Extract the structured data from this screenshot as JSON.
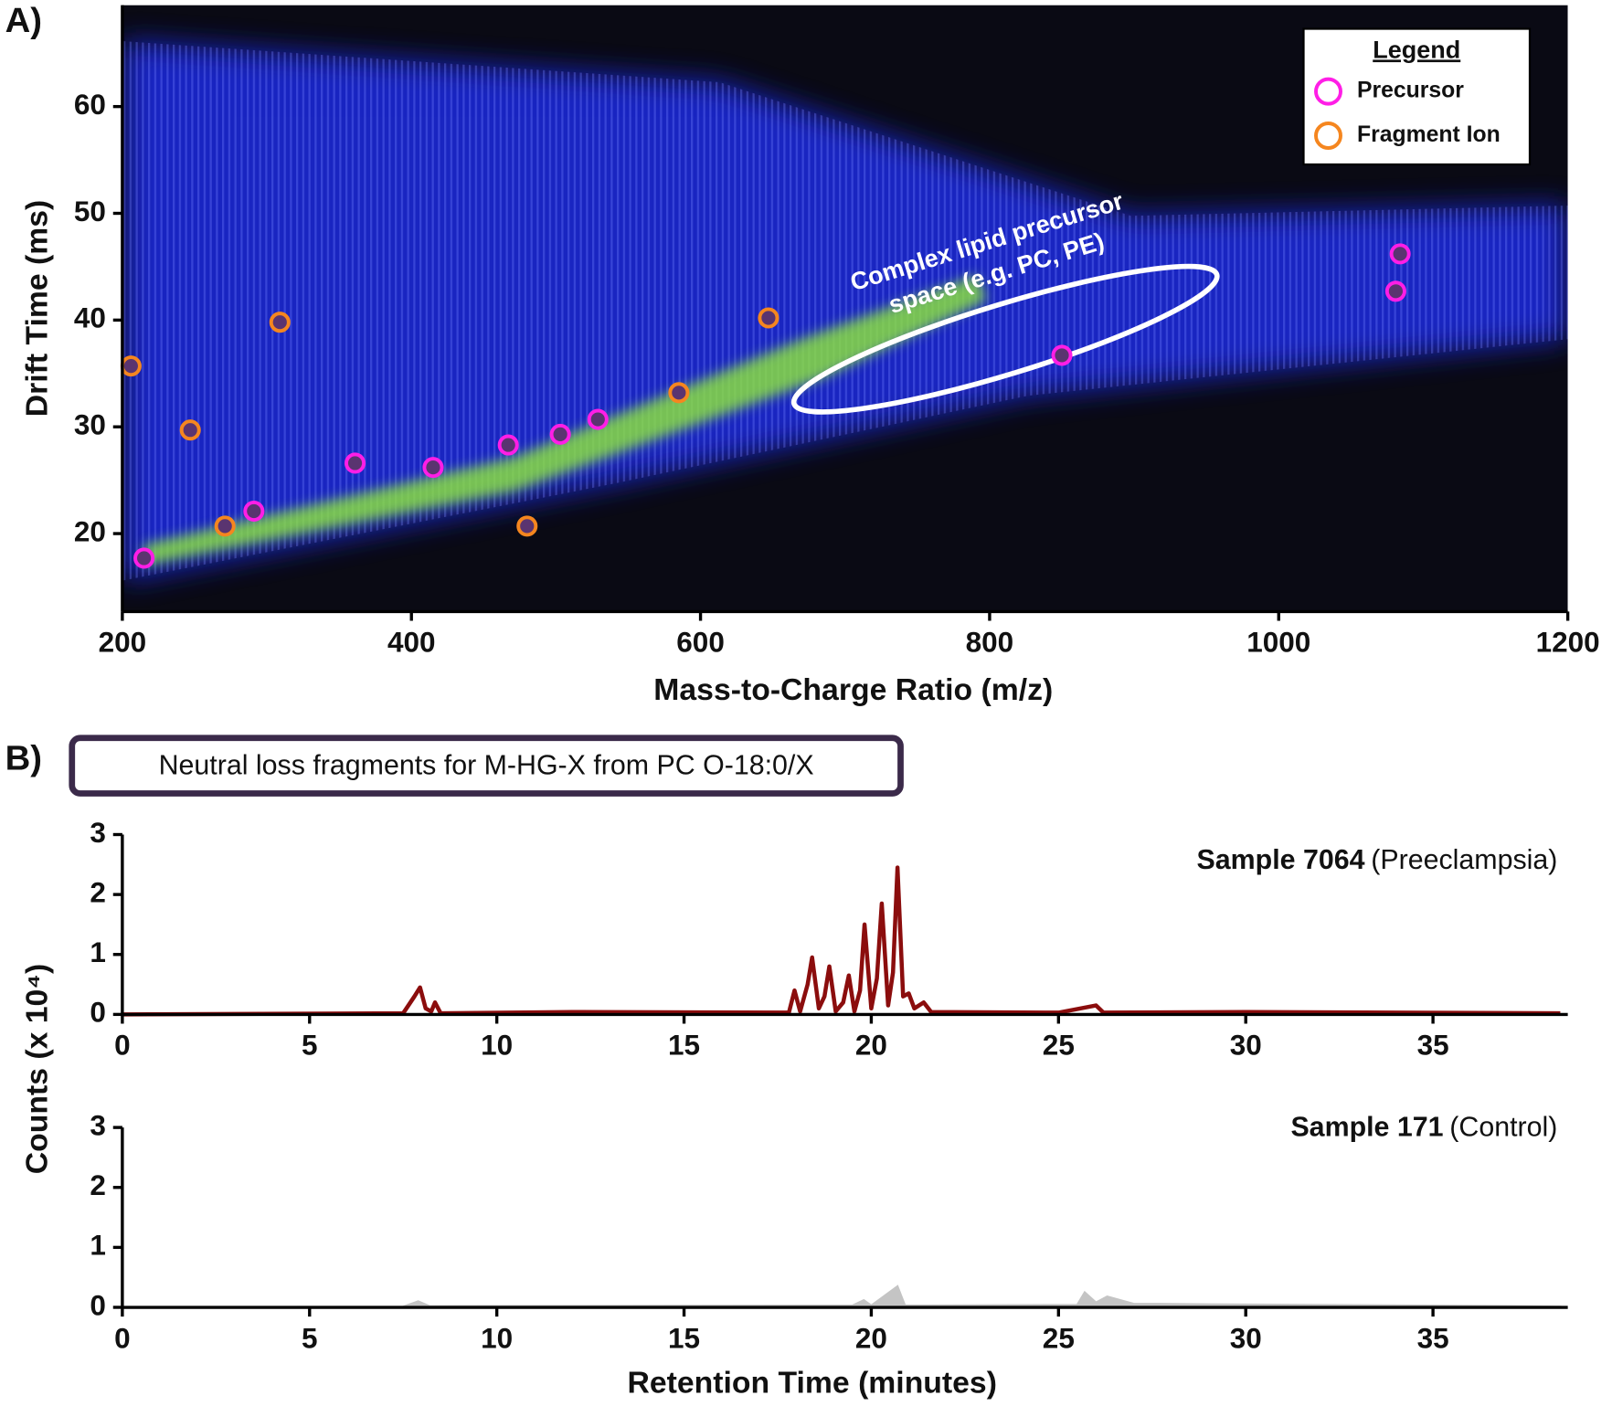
{
  "chart_data": [
    {
      "type": "scatter",
      "panel": "A)",
      "xlabel": "Mass-to-Charge Ratio (m/z)",
      "ylabel": "Drift Time (ms)",
      "xlim": [
        200,
        1200
      ],
      "ylim": [
        12.7,
        69.5
      ],
      "xticks": [
        200,
        400,
        600,
        800,
        1000,
        1200
      ],
      "yticks": [
        20,
        30,
        40,
        50,
        60
      ],
      "legend_title": "Legend",
      "legend": "upper right",
      "annotation": [
        "Complex lipid precursor",
        "space (e.g. PC, PE)"
      ],
      "series": [
        {
          "name": "Precursor",
          "color": "#ff1ee6",
          "x": [
            215,
            291,
            361,
            415,
            467,
            503,
            529,
            850,
            1081,
            1084
          ],
          "values": [
            17.7,
            22.1,
            26.6,
            26.2,
            28.3,
            29.3,
            30.7,
            36.7,
            42.7,
            46.2
          ]
        },
        {
          "name": "Fragment Ion",
          "color": "#f5861f",
          "x": [
            206,
            247,
            271,
            309,
            480,
            585,
            647
          ],
          "values": [
            35.7,
            29.7,
            20.7,
            39.8,
            20.7,
            33.2,
            40.2
          ]
        }
      ]
    },
    {
      "type": "line",
      "panel": "B)",
      "title": "Neutral loss fragments for M-HG-X from PC O-18:0/X",
      "ylabel": "Counts (x 10⁴)",
      "sample": "Sample 7064",
      "group": "(Preeclampsia)",
      "color": "#8b0d0d",
      "xlim": [
        0,
        38.6
      ],
      "ylim": [
        0,
        3
      ],
      "xticks": [
        0,
        5,
        10,
        15,
        20,
        25,
        30,
        35
      ],
      "yticks": [
        0,
        1,
        2,
        3
      ],
      "x": [
        0,
        7.5,
        7.8,
        7.95,
        8.1,
        8.25,
        8.35,
        8.5,
        12,
        17.8,
        17.95,
        18.1,
        18.3,
        18.42,
        18.6,
        18.75,
        18.88,
        19.05,
        19.25,
        19.4,
        19.55,
        19.7,
        19.82,
        20.0,
        20.15,
        20.28,
        20.45,
        20.58,
        20.7,
        20.85,
        21.0,
        21.15,
        21.4,
        21.6,
        25,
        26.0,
        26.2,
        30,
        38.4
      ],
      "values": [
        0,
        0.02,
        0.3,
        0.45,
        0.1,
        0.05,
        0.2,
        0.02,
        0.04,
        0.03,
        0.4,
        0.05,
        0.5,
        0.95,
        0.1,
        0.3,
        0.8,
        0.05,
        0.2,
        0.65,
        0.05,
        0.4,
        1.5,
        0.1,
        0.6,
        1.85,
        0.15,
        0.7,
        2.45,
        0.3,
        0.35,
        0.1,
        0.2,
        0.04,
        0.03,
        0.15,
        0.03,
        0.04,
        0.02
      ]
    },
    {
      "type": "area",
      "sample": "Sample 171",
      "group": "(Control)",
      "xlabel": "Retention Time (minutes)",
      "color": "#c4c4c4",
      "xlim": [
        0,
        38.6
      ],
      "ylim": [
        0,
        3
      ],
      "xticks": [
        0,
        5,
        10,
        15,
        20,
        25,
        30,
        35
      ],
      "yticks": [
        0,
        1,
        2,
        3
      ],
      "x": [
        0,
        7.5,
        7.9,
        8.2,
        19.5,
        19.8,
        20.0,
        20.7,
        20.9,
        25.5,
        25.7,
        26.0,
        26.3,
        27,
        29,
        37.3,
        38.4
      ],
      "values": [
        0,
        0.01,
        0.1,
        0.02,
        0.03,
        0.12,
        0.03,
        0.35,
        0.03,
        0.04,
        0.25,
        0.08,
        0.18,
        0.06,
        0.05,
        0.02,
        0.01
      ]
    }
  ]
}
